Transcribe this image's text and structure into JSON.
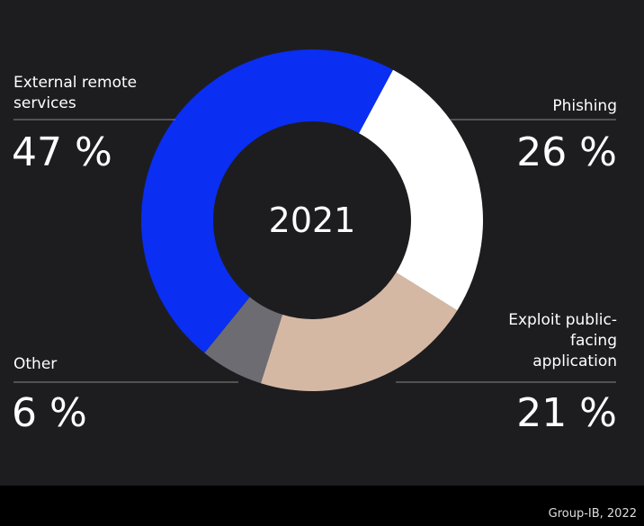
{
  "chart_data": {
    "type": "pie",
    "center_label": "2021",
    "categories": [
      "External remote services",
      "Phishing",
      "Exploit public-facing application",
      "Other"
    ],
    "values": [
      47,
      26,
      21,
      6
    ],
    "value_labels": [
      "47 %",
      "26 %",
      "21 %",
      "6 %"
    ],
    "colors": [
      "#0a2ef2",
      "#ffffff",
      "#d5b8a4",
      "#6c6c72"
    ]
  },
  "source": "Group-IB, 2022"
}
